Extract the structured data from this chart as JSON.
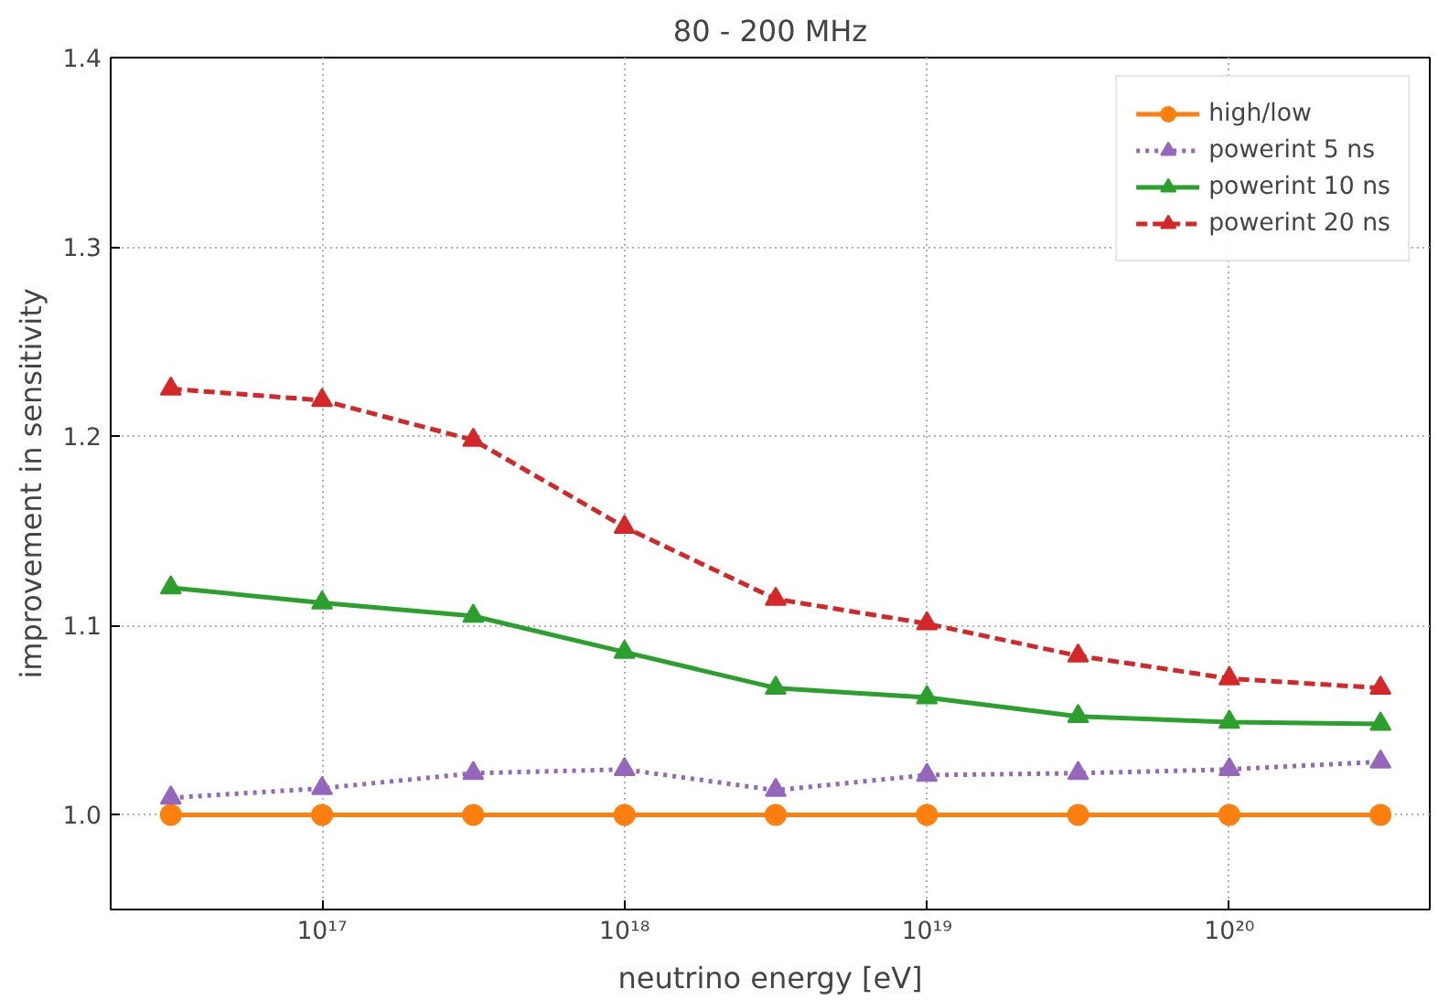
{
  "chart_data": {
    "type": "line",
    "title": "80 - 200 MHz",
    "xlabel": "neutrino energy [eV]",
    "ylabel": "improvement in sensitivity",
    "x": [
      3.162e+16,
      1e+17,
      3.162e+17,
      1e+18,
      3.162e+18,
      1e+19,
      3.162e+19,
      1e+20,
      3.162e+20
    ],
    "log": "x",
    "xlim": [
      2e+16,
      4.6e+20
    ],
    "ylim": [
      0.95,
      1.4
    ],
    "xticks": [
      {
        "value": 1e+17,
        "label": "10¹⁷"
      },
      {
        "value": 1e+18,
        "label": "10¹⁸"
      },
      {
        "value": 1e+19,
        "label": "10¹⁹"
      },
      {
        "value": 1e+20,
        "label": "10²⁰"
      }
    ],
    "yticks": [
      {
        "value": 1.0,
        "label": "1.0"
      },
      {
        "value": 1.1,
        "label": "1.1"
      },
      {
        "value": 1.2,
        "label": "1.2"
      },
      {
        "value": 1.3,
        "label": "1.3"
      },
      {
        "value": 1.4,
        "label": "1.4"
      }
    ],
    "grid": true,
    "legend": "top right",
    "series": [
      {
        "name": "high/low",
        "color": "#ff7f0e",
        "marker": "circle",
        "line_style": "solid",
        "values": [
          1.0,
          1.0,
          1.0,
          1.0,
          1.0,
          1.0,
          1.0,
          1.0,
          1.0
        ]
      },
      {
        "name": "powerint 5 ns",
        "color": "#9467bd",
        "marker": "triangle",
        "line_style": "dotted",
        "values": [
          1.009,
          1.014,
          1.022,
          1.024,
          1.013,
          1.021,
          1.022,
          1.024,
          1.028
        ]
      },
      {
        "name": "powerint 10 ns",
        "color": "#2ca02c",
        "marker": "triangle",
        "line_style": "solid",
        "values": [
          1.12,
          1.112,
          1.105,
          1.086,
          1.067,
          1.062,
          1.052,
          1.049,
          1.048
        ]
      },
      {
        "name": "powerint 20 ns",
        "color": "#d62728",
        "marker": "triangle",
        "line_style": "dashed",
        "values": [
          1.225,
          1.219,
          1.198,
          1.152,
          1.114,
          1.101,
          1.084,
          1.072,
          1.067
        ]
      }
    ]
  }
}
